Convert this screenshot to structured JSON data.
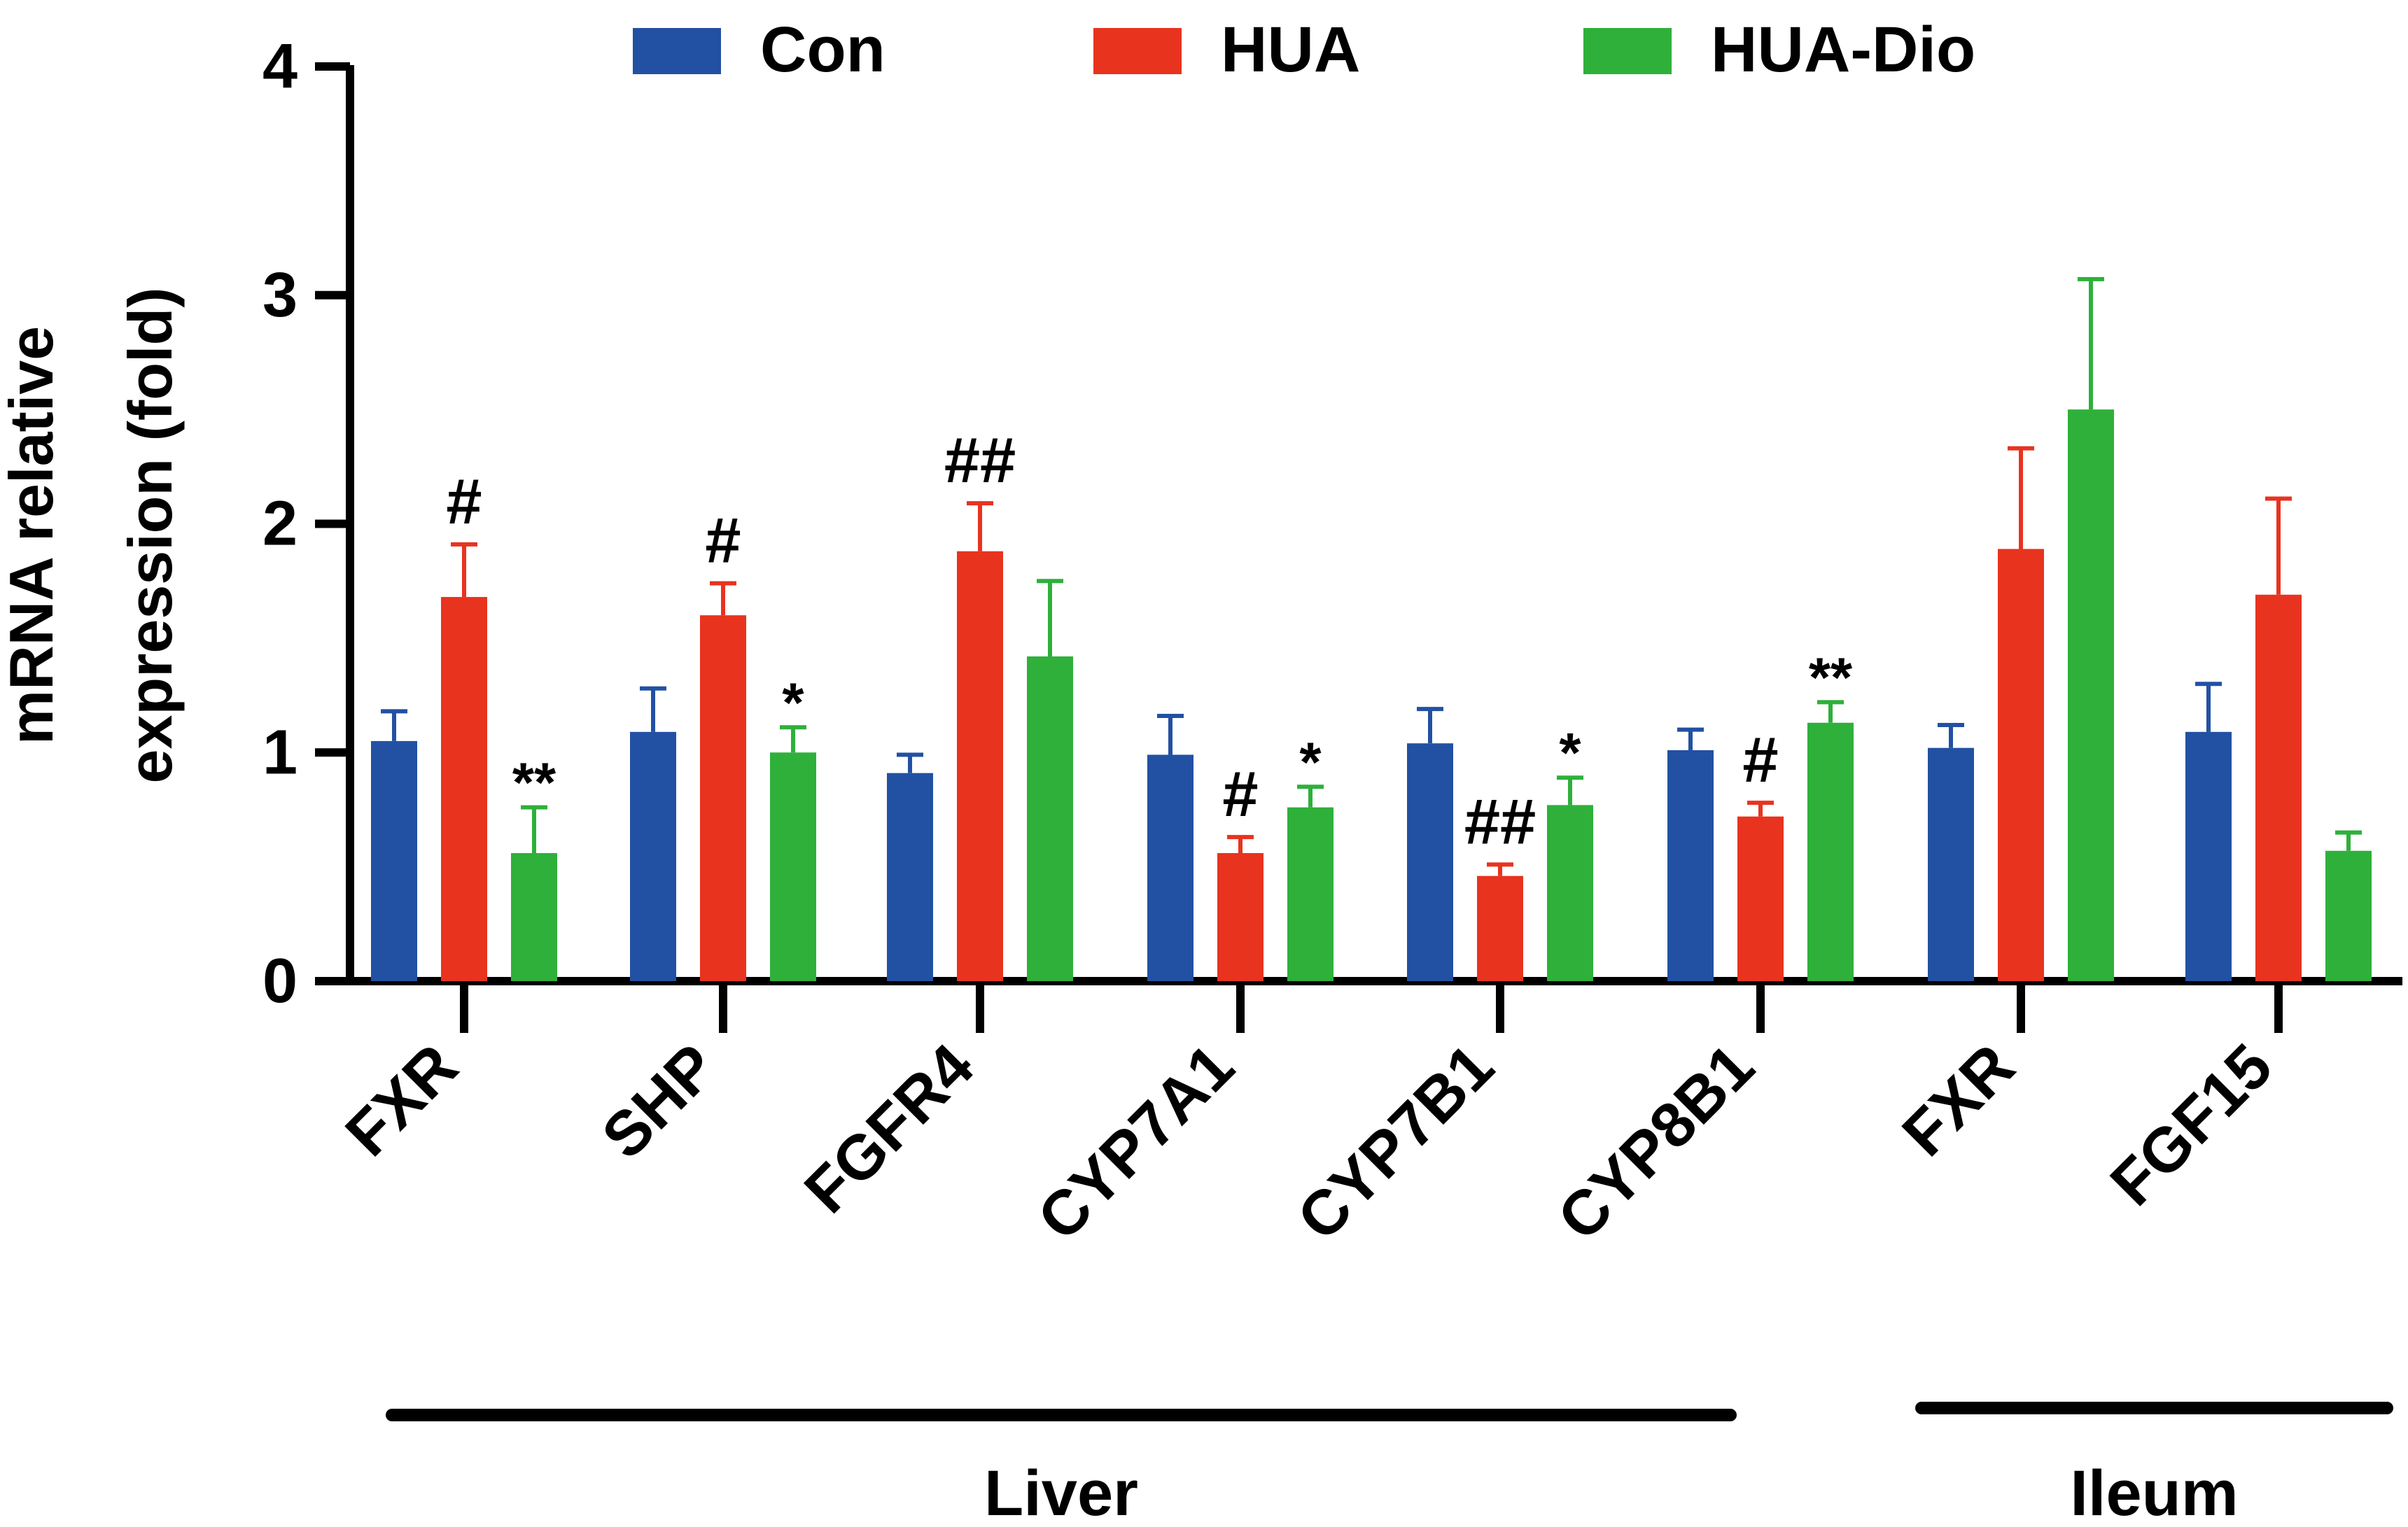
{
  "chart_data": {
    "type": "bar",
    "title": "",
    "xlabel": "",
    "ylabel": "mRNA relative expression (fold)",
    "ylabel_lines": [
      "mRNA relative",
      "expression (fold)"
    ],
    "ylim": [
      0,
      4
    ],
    "yticks": [
      "0",
      "1",
      "2",
      "3",
      "4"
    ],
    "grid": false,
    "legend_position": "top-center",
    "categories": [
      "FXR",
      "SHP",
      "FGFR4",
      "CYP7A1",
      "CYP7B1",
      "CYP8B1",
      "FXR",
      "FGF15"
    ],
    "series": [
      {
        "name": "Con",
        "color": "#2251a3",
        "values": [
          1.05,
          1.09,
          0.91,
          0.99,
          1.04,
          1.01,
          1.02,
          1.09
        ],
        "errors": [
          0.13,
          0.19,
          0.08,
          0.17,
          0.15,
          0.09,
          0.1,
          0.21
        ],
        "annotations": [
          "",
          "",
          "",
          "",
          "",
          "",
          "",
          ""
        ]
      },
      {
        "name": "HUA",
        "color": "#e8331f",
        "values": [
          1.68,
          1.6,
          1.88,
          0.56,
          0.46,
          0.72,
          1.89,
          1.69
        ],
        "errors": [
          0.23,
          0.14,
          0.21,
          0.07,
          0.05,
          0.06,
          0.44,
          0.42
        ],
        "annotations": [
          "#",
          "#",
          "##",
          "#",
          "##",
          "#",
          "",
          ""
        ]
      },
      {
        "name": "HUA-Dio",
        "color": "#2eb03a",
        "values": [
          0.56,
          1.0,
          1.42,
          0.76,
          0.77,
          1.13,
          2.5,
          0.57
        ],
        "errors": [
          0.2,
          0.11,
          0.33,
          0.09,
          0.12,
          0.09,
          0.57,
          0.08
        ],
        "annotations": [
          "**",
          "*",
          "",
          "*",
          "*",
          "**",
          "",
          ""
        ]
      }
    ],
    "groups": [
      {
        "label": "Liver",
        "from": 0,
        "to": 5
      },
      {
        "label": "Ileum",
        "from": 6,
        "to": 7
      }
    ]
  }
}
